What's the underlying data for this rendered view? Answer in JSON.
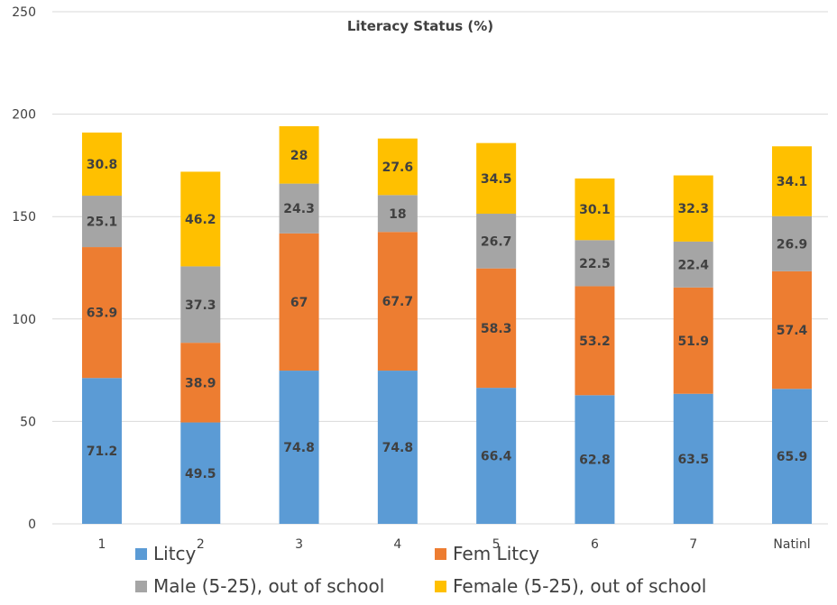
{
  "chart_data": {
    "type": "bar",
    "stacked": true,
    "title": "Literacy Status (%)",
    "xlabel": "",
    "ylabel": "",
    "ylim": [
      0,
      250
    ],
    "yticks": [
      0,
      50,
      100,
      150,
      200,
      250
    ],
    "grid": true,
    "legend_position": "bottom",
    "categories": [
      "1",
      "2",
      "3",
      "4",
      "5",
      "6",
      "7",
      "Natinl"
    ],
    "series": [
      {
        "name": "Litcy",
        "color": "#5b9bd5",
        "values": [
          71.2,
          49.5,
          74.8,
          74.8,
          66.4,
          62.8,
          63.5,
          65.9
        ]
      },
      {
        "name": "Fem Litcy",
        "color": "#ed7d31",
        "values": [
          63.9,
          38.9,
          67,
          67.7,
          58.3,
          53.2,
          51.9,
          57.4
        ]
      },
      {
        "name": "Male (5-25), out of school",
        "color": "#a5a5a5",
        "values": [
          25.1,
          37.3,
          24.3,
          18,
          26.7,
          22.5,
          22.4,
          26.9
        ]
      },
      {
        "name": "Female (5-25), out of school",
        "color": "#ffc000",
        "values": [
          30.8,
          46.2,
          28,
          27.6,
          34.5,
          30.1,
          32.3,
          34.1
        ]
      }
    ]
  }
}
